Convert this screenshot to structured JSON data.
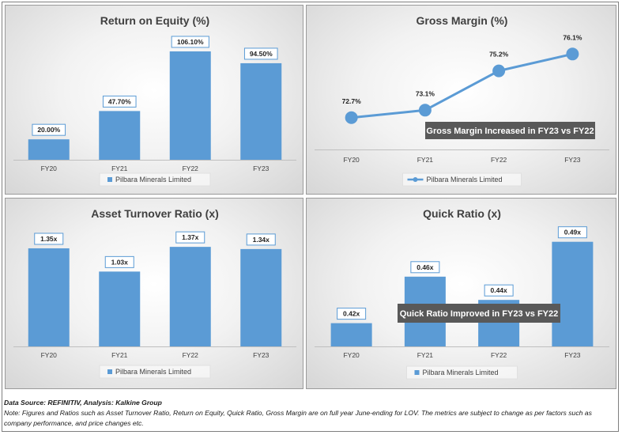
{
  "chart_data": [
    {
      "type": "bar",
      "title": "Return on Equity (%)",
      "categories": [
        "FY20",
        "FY21",
        "FY22",
        "FY23"
      ],
      "series": [
        {
          "name": "Pilbara Minerals Limited",
          "values": [
            20.0,
            47.7,
            106.1,
            94.5
          ]
        }
      ],
      "labels": [
        "20.00%",
        "47.70%",
        "106.10%",
        "94.50%"
      ],
      "ylim": [
        0,
        120
      ],
      "color": "#5b9bd5",
      "legend_position": "bottom"
    },
    {
      "type": "line",
      "title": "Gross Margin (%)",
      "categories": [
        "FY20",
        "FY21",
        "FY22",
        "FY23"
      ],
      "series": [
        {
          "name": "Pilbara Minerals Limited",
          "values": [
            72.7,
            73.1,
            75.2,
            76.1
          ]
        }
      ],
      "labels": [
        "72.7%",
        "73.1%",
        "75.2%",
        "76.1%"
      ],
      "ylim": [
        71,
        77
      ],
      "color": "#5b9bd5",
      "legend_position": "bottom",
      "annotation": "Gross Margin Increased in FY23 vs FY22"
    },
    {
      "type": "bar",
      "title": "Asset Turnover Ratio (x)",
      "categories": [
        "FY20",
        "FY21",
        "FY22",
        "FY23"
      ],
      "series": [
        {
          "name": "Pilbara Minerals Limited",
          "values": [
            1.35,
            1.03,
            1.37,
            1.34
          ]
        }
      ],
      "labels": [
        "1.35x",
        "1.03x",
        "1.37x",
        "1.34x"
      ],
      "ylim": [
        0,
        1.6
      ],
      "color": "#5b9bd5",
      "legend_position": "bottom"
    },
    {
      "type": "bar",
      "title": "Quick Ratio (x)",
      "categories": [
        "FY20",
        "FY21",
        "FY22",
        "FY23"
      ],
      "series": [
        {
          "name": "Pilbara Minerals Limited",
          "values": [
            0.42,
            0.46,
            0.44,
            0.49
          ]
        }
      ],
      "labels": [
        "0.42x",
        "0.46x",
        "0.44x",
        "0.49x"
      ],
      "ylim": [
        0.4,
        0.5
      ],
      "color": "#5b9bd5",
      "legend_position": "bottom",
      "annotation": "Quick Ratio Improved in FY23 vs FY22"
    }
  ],
  "footer": {
    "source": "Data Source: REFINITIV, Analysis: Kalkine Group",
    "note": "Note: Figures and Ratios such as Asset Turnover Ratio, Return on Equity, Quick Ratio, Gross Margin are on full year June-ending for LOV. The metrics are subject to change as per factors such as company performance, and price changes etc."
  }
}
